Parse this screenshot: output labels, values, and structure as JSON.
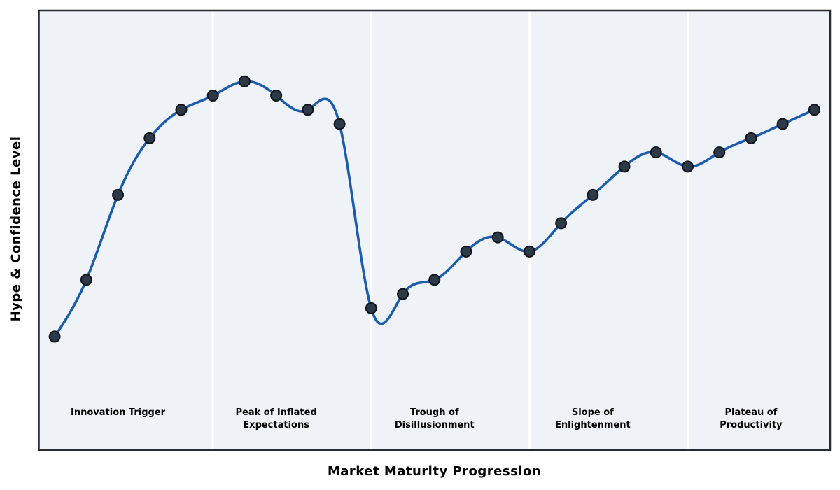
{
  "chart_data": {
    "type": "line",
    "title": "",
    "xlabel": "Market Maturity Progression",
    "ylabel": "Hype & Confidence Level",
    "x": [
      0,
      1,
      2,
      3,
      4,
      5,
      6,
      7,
      8,
      9,
      10,
      11,
      12,
      13,
      14,
      15,
      16,
      17,
      18,
      19,
      20,
      21,
      22,
      23,
      24
    ],
    "values": [
      5,
      25,
      55,
      75,
      85,
      90,
      95,
      90,
      85,
      80,
      15,
      20,
      25,
      35,
      40,
      35,
      45,
      55,
      65,
      70,
      65,
      70,
      75,
      80,
      85
    ],
    "xlim": [
      -0.5,
      24.5
    ],
    "ylim": [
      -35,
      120
    ],
    "grid": false,
    "legend": "none",
    "ticks": "none",
    "curve_style": "smooth-cubic-spline-through-points",
    "marker": "circle",
    "phase_separators_x": [
      5,
      10,
      15,
      20
    ],
    "phases": [
      {
        "text": "Innovation Trigger",
        "center_x": 2
      },
      {
        "text": "Peak of Inflated\nExpectations",
        "center_x": 7
      },
      {
        "text": "Trough of\nDisillusionment",
        "center_x": 12
      },
      {
        "text": "Slope of\nEnlightenment",
        "center_x": 17
      },
      {
        "text": "Plateau of\nProductivity",
        "center_x": 22
      }
    ],
    "colors": {
      "plot_background": "#eff3f7",
      "frame": "#262b31",
      "line": "#1b5caf",
      "marker_fill": "#2c3a48",
      "marker_edge": "#10151c",
      "separator": "#ffffff",
      "label_text": "#000000"
    }
  }
}
